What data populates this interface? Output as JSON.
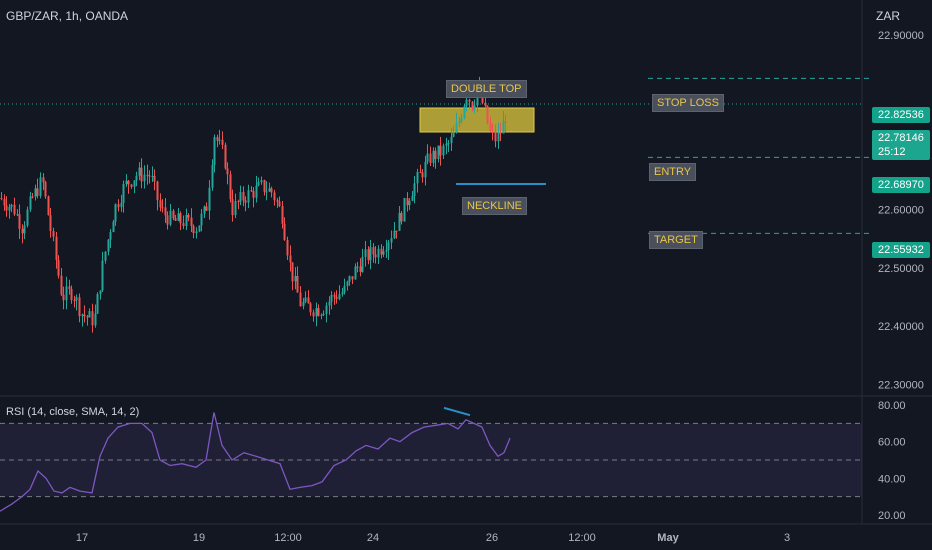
{
  "header": {
    "title": "GBP/ZAR, 1h, OANDA",
    "currency": "ZAR"
  },
  "rsi_pane": {
    "label": "RSI (14, close, SMA, 14, 2)"
  },
  "price_badges": {
    "stop_loss": "22.82536",
    "current": "22.78146",
    "countdown": "25:12",
    "entry": "22.68970",
    "target": "22.55932"
  },
  "annotations": {
    "double_top": "DOUBLE TOP",
    "neckline": "NECKLINE",
    "stop_loss": "STOP LOSS",
    "entry": "ENTRY",
    "target": "TARGET"
  },
  "colors": {
    "background": "#131722",
    "up": "#26a69a",
    "down": "#ef5350",
    "rsi_line": "#7e57c2",
    "zone": "#c9b53a",
    "neckline": "#2a8fc7",
    "levels": "#26a69a"
  },
  "chart_data": [
    {
      "type": "candlestick",
      "title": "GBP/ZAR, 1h, OANDA",
      "yunit": "ZAR",
      "ylim": [
        22.28,
        22.96
      ],
      "yticks": [
        "22.30000",
        "22.40000",
        "22.50000",
        "22.60000",
        "22.90000"
      ],
      "xticks": [
        "17",
        "19",
        "12:00",
        "24",
        "26",
        "12:00",
        "May",
        "3"
      ],
      "path_points": [
        [
          0,
          22.62
        ],
        [
          14,
          22.6
        ],
        [
          22,
          22.57
        ],
        [
          32,
          22.62
        ],
        [
          42,
          22.65
        ],
        [
          52,
          22.55
        ],
        [
          62,
          22.45
        ],
        [
          72,
          22.46
        ],
        [
          82,
          22.42
        ],
        [
          94,
          22.41
        ],
        [
          104,
          22.52
        ],
        [
          114,
          22.6
        ],
        [
          124,
          22.64
        ],
        [
          136,
          22.66
        ],
        [
          150,
          22.66
        ],
        [
          160,
          22.6
        ],
        [
          172,
          22.58
        ],
        [
          184,
          22.58
        ],
        [
          196,
          22.57
        ],
        [
          206,
          22.6
        ],
        [
          214,
          22.73
        ],
        [
          224,
          22.69
        ],
        [
          232,
          22.6
        ],
        [
          242,
          22.62
        ],
        [
          252,
          22.63
        ],
        [
          262,
          22.64
        ],
        [
          272,
          22.63
        ],
        [
          282,
          22.59
        ],
        [
          290,
          22.5
        ],
        [
          300,
          22.44
        ],
        [
          312,
          22.43
        ],
        [
          322,
          22.43
        ],
        [
          332,
          22.45
        ],
        [
          344,
          22.46
        ],
        [
          356,
          22.5
        ],
        [
          366,
          22.52
        ],
        [
          378,
          22.53
        ],
        [
          388,
          22.55
        ],
        [
          398,
          22.58
        ],
        [
          410,
          22.63
        ],
        [
          420,
          22.66
        ],
        [
          430,
          22.69
        ],
        [
          442,
          22.7
        ],
        [
          452,
          22.72
        ],
        [
          460,
          22.76
        ],
        [
          466,
          22.8
        ],
        [
          472,
          22.78
        ],
        [
          478,
          22.81
        ],
        [
          484,
          22.77
        ],
        [
          490,
          22.73
        ],
        [
          496,
          22.72
        ],
        [
          502,
          22.74
        ],
        [
          508,
          22.78
        ]
      ],
      "levels": {
        "stop_loss": 22.82536,
        "current": 22.78146,
        "entry": 22.6897,
        "target": 22.55932
      }
    },
    {
      "type": "line",
      "title": "RSI (14, close, SMA, 14, 2)",
      "ylim": [
        15,
        85
      ],
      "yticks": [
        "20.00",
        "40.00",
        "60.00",
        "80.00"
      ],
      "bands": [
        30,
        50,
        70
      ],
      "series": [
        {
          "x": [
            0,
            12,
            22,
            30,
            38,
            46,
            54,
            62,
            70,
            80,
            92,
            100,
            108,
            118,
            130,
            142,
            152,
            160,
            170,
            182,
            196,
            206,
            214,
            222,
            232,
            244,
            256,
            268,
            280,
            290,
            300,
            312,
            322,
            334,
            346,
            356,
            366,
            378,
            390,
            400,
            412,
            424,
            436,
            448,
            458,
            466,
            474,
            482,
            490,
            498,
            504,
            510
          ],
          "values": [
            22,
            26,
            30,
            34,
            44,
            40,
            33,
            32,
            35,
            33,
            32,
            52,
            62,
            68,
            70,
            70,
            65,
            50,
            47,
            48,
            46,
            50,
            76,
            58,
            50,
            54,
            52,
            50,
            48,
            34,
            35,
            36,
            38,
            47,
            50,
            55,
            58,
            56,
            62,
            60,
            65,
            68,
            69,
            70,
            67,
            72,
            70,
            68,
            58,
            52,
            54,
            62
          ]
        }
      ],
      "annotations": {
        "divergence_line": [
          [
            444,
            78.5
          ],
          [
            470,
            74.5
          ]
        ]
      }
    }
  ]
}
